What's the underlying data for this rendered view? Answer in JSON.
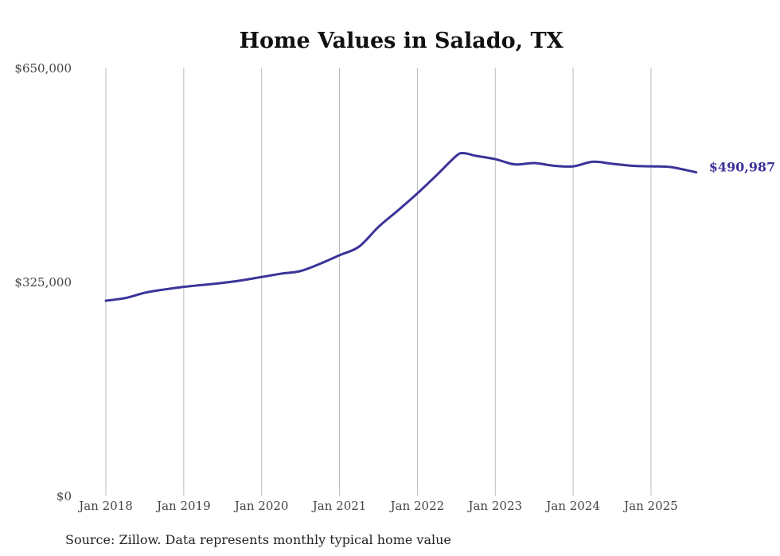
{
  "chart_data": {
    "type": "line",
    "title": "Home Values in Salado, TX",
    "xlabel": "",
    "ylabel": "",
    "source": "Source: Zillow. Data represents monthly typical home value",
    "ylim": [
      0,
      650000
    ],
    "y_ticks": [
      {
        "value": 0,
        "label": "$0"
      },
      {
        "value": 325000,
        "label": "$325,000"
      },
      {
        "value": 650000,
        "label": "$650,000"
      }
    ],
    "x_range": [
      2018.0,
      2025.58
    ],
    "x_ticks": [
      {
        "value": 2018,
        "label": "Jan 2018"
      },
      {
        "value": 2019,
        "label": "Jan 2019"
      },
      {
        "value": 2020,
        "label": "Jan 2020"
      },
      {
        "value": 2021,
        "label": "Jan 2021"
      },
      {
        "value": 2022,
        "label": "Jan 2022"
      },
      {
        "value": 2023,
        "label": "Jan 2023"
      },
      {
        "value": 2024,
        "label": "Jan 2024"
      },
      {
        "value": 2025,
        "label": "Jan 2025"
      }
    ],
    "grid": "vertical",
    "color": "#3b3399",
    "series": [
      {
        "name": "Typical home value",
        "x": [
          2018.0,
          2018.25,
          2018.5,
          2018.75,
          2019.0,
          2019.25,
          2019.5,
          2019.75,
          2020.0,
          2020.25,
          2020.5,
          2020.75,
          2021.0,
          2021.25,
          2021.5,
          2021.75,
          2022.0,
          2022.25,
          2022.5,
          2022.6,
          2022.75,
          2023.0,
          2023.25,
          2023.5,
          2023.75,
          2024.0,
          2024.25,
          2024.5,
          2024.75,
          2025.0,
          2025.25,
          2025.58
        ],
        "values": [
          296000,
          300000,
          308000,
          313000,
          317000,
          320000,
          323000,
          327000,
          332000,
          337000,
          341000,
          352000,
          365000,
          378000,
          408000,
          433000,
          459000,
          487000,
          516000,
          520000,
          516000,
          511000,
          503000,
          505000,
          501000,
          500000,
          507000,
          504000,
          501000,
          500000,
          499000,
          490987
        ]
      }
    ],
    "end_label": "$490,987"
  }
}
